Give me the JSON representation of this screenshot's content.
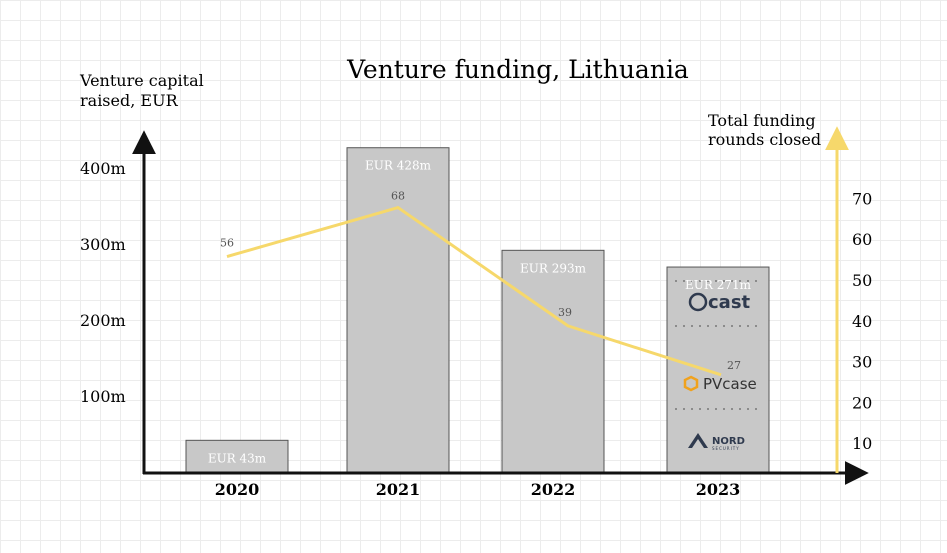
{
  "chart_data": {
    "type": "bar",
    "title": "Venture funding, Lithuania",
    "categories": [
      "2020",
      "2021",
      "2022",
      "2023"
    ],
    "bar_series": {
      "values": [
        43,
        428,
        293,
        271
      ],
      "labels": [
        "EUR 43m",
        "EUR 428m",
        "EUR 293m",
        "EUR 271m"
      ],
      "color": "#c8c8c8"
    },
    "line_series": {
      "values": [
        56,
        68,
        39,
        27
      ],
      "labels": [
        "56",
        "68",
        "39",
        "27"
      ],
      "color": "#f6d86b"
    },
    "y_left": {
      "label_lines": [
        "Venture capital",
        "raised, EUR"
      ],
      "ticks": [
        100,
        200,
        300,
        400
      ],
      "tick_labels": [
        "100m",
        "200m",
        "300m",
        "400m"
      ],
      "axis_color": "#111111"
    },
    "y_right": {
      "label_lines": [
        "Total funding",
        "rounds closed"
      ],
      "ticks": [
        10,
        20,
        30,
        40,
        50,
        60,
        70
      ],
      "tick_labels": [
        "10",
        "20",
        "30",
        "40",
        "50",
        "60",
        "70"
      ],
      "axis_color": "#f6d86b"
    },
    "logos": [
      {
        "icon": "cast-logo",
        "text": "cast"
      },
      {
        "icon": "pvcase-logo",
        "text": "PVcase"
      },
      {
        "icon": "nord-security-logo",
        "text": "NORD",
        "subtext": "SECURITY"
      }
    ],
    "grid": true
  }
}
